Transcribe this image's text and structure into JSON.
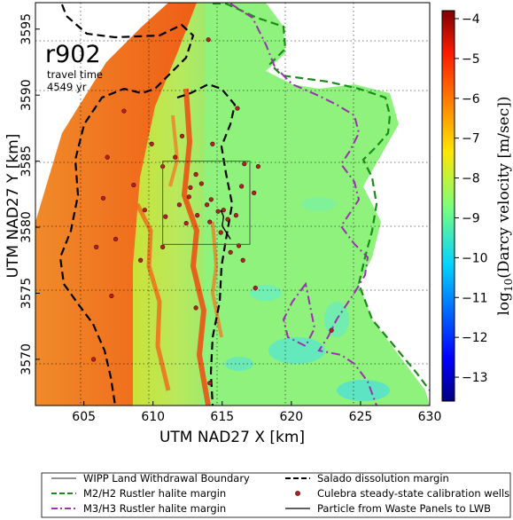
{
  "map": {
    "run_label": "r902",
    "travel_time_label": "travel time",
    "travel_time_value": "4549 yr",
    "x_axis_label": "UTM NAD27 X [km]",
    "y_axis_label": "UTM NAD27 Y [km]",
    "x_ticks": [
      "605",
      "610",
      "615",
      "620",
      "625",
      "630"
    ],
    "y_ticks": [
      "3570",
      "3575",
      "3580",
      "3585",
      "3590",
      "3595"
    ],
    "x_range_km": [
      601.5,
      630
    ],
    "y_range_km": [
      3566.5,
      3597
    ],
    "grid": true
  },
  "colorbar": {
    "label": "log10(Darcy velocity [m/sec])",
    "ticks": [
      "-4",
      "-5",
      "-6",
      "-7",
      "-8",
      "-9",
      "-10",
      "-11",
      "-12",
      "-13"
    ],
    "range": [
      -13.6,
      -3.8
    ],
    "colormap": "jet"
  },
  "legend": {
    "items": [
      {
        "label": "WIPP Land Withdrawal Boundary",
        "color": "#555555",
        "style": "solid"
      },
      {
        "label": "Salado dissolution margin",
        "color": "#000000",
        "style": "dashed"
      },
      {
        "label": "M2/H2 Rustler halite margin",
        "color": "#1a8c1a",
        "style": "dashed"
      },
      {
        "label": "Culebra steady-state calibration wells",
        "color": "#b22222",
        "style": "dot"
      },
      {
        "label": "M3/H3 Rustler halite margin",
        "color": "#9b30b0",
        "style": "dashdot"
      },
      {
        "label": "Particle from Waste Panels to LWB",
        "color": "#000000",
        "style": "solid"
      }
    ]
  },
  "wells": [
    [
      614.0,
      3594.2
    ],
    [
      616.1,
      3589.0
    ],
    [
      607.9,
      3588.8
    ],
    [
      609.9,
      3586.3
    ],
    [
      612.1,
      3586.9
    ],
    [
      614.3,
      3586.3
    ],
    [
      606.7,
      3585.3
    ],
    [
      611.6,
      3585.3
    ],
    [
      616.6,
      3584.8
    ],
    [
      617.6,
      3584.6
    ],
    [
      610.7,
      3584.6
    ],
    [
      613.1,
      3584.0
    ],
    [
      608.6,
      3583.2
    ],
    [
      616.4,
      3583.1
    ],
    [
      612.7,
      3583.0
    ],
    [
      613.5,
      3583.3
    ],
    [
      617.3,
      3582.6
    ],
    [
      614.2,
      3582.1
    ],
    [
      613.9,
      3581.7
    ],
    [
      612.6,
      3582.3
    ],
    [
      611.9,
      3581.7
    ],
    [
      606.4,
      3582.2
    ],
    [
      609.4,
      3581.3
    ],
    [
      614.7,
      3581.2
    ],
    [
      613.2,
      3580.9
    ],
    [
      615.1,
      3581.3
    ],
    [
      616.0,
      3580.9
    ],
    [
      612.4,
      3580.3
    ],
    [
      614.1,
      3580.4
    ],
    [
      610.9,
      3580.8
    ],
    [
      615.4,
      3580.6
    ],
    [
      614.9,
      3579.6
    ],
    [
      616.2,
      3578.6
    ],
    [
      610.7,
      3578.5
    ],
    [
      605.9,
      3578.5
    ],
    [
      607.3,
      3579.1
    ],
    [
      615.6,
      3578.1
    ],
    [
      616.5,
      3577.5
    ],
    [
      609.1,
      3577.5
    ],
    [
      617.4,
      3575.4
    ],
    [
      607.0,
      3574.8
    ],
    [
      613.1,
      3573.9
    ],
    [
      622.9,
      3572.2
    ],
    [
      605.7,
      3570.0
    ],
    [
      614.1,
      3568.2
    ]
  ],
  "lwb": [
    [
      610.7,
      3585.0
    ],
    [
      617.0,
      3585.0
    ],
    [
      617.0,
      3578.7
    ],
    [
      610.7,
      3578.7
    ]
  ],
  "particle": [
    [
      614.9,
      3581.3
    ],
    [
      615.1,
      3580.8
    ],
    [
      615.0,
      3580.1
    ],
    [
      615.3,
      3579.6
    ],
    [
      615.6,
      3579.1
    ]
  ]
}
